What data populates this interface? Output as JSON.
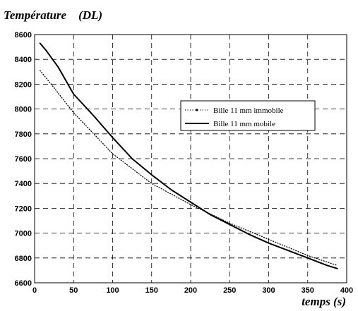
{
  "chart_data": {
    "type": "line",
    "title": "Température    (DL)",
    "xlabel": "temps (s)",
    "xlim": [
      0,
      400
    ],
    "ylim": [
      6600,
      8600
    ],
    "xticks": [
      0,
      50,
      100,
      150,
      200,
      250,
      300,
      350,
      400
    ],
    "yticks": [
      6600,
      6800,
      7000,
      7200,
      7400,
      7600,
      7800,
      8000,
      8200,
      8400,
      8600
    ],
    "grid": true,
    "legend_position": "center-right",
    "series": [
      {
        "name": "Bille 11 mm immobile",
        "style": "dotted",
        "color": "#000000",
        "x": [
          7,
          20,
          50,
          100,
          150,
          200,
          250,
          300,
          350,
          388
        ],
        "y": [
          8310,
          8210,
          7970,
          7640,
          7400,
          7230,
          7080,
          6950,
          6820,
          6740
        ]
      },
      {
        "name": "Bille 11 mm mobile",
        "style": "solid",
        "color": "#000000",
        "x": [
          7,
          15,
          30,
          50,
          75,
          100,
          125,
          150,
          175,
          200,
          225,
          250,
          275,
          300,
          325,
          350,
          375,
          388
        ],
        "y": [
          8530,
          8470,
          8340,
          8120,
          7950,
          7770,
          7600,
          7470,
          7350,
          7250,
          7150,
          7070,
          6990,
          6920,
          6860,
          6800,
          6740,
          6715
        ]
      }
    ]
  }
}
